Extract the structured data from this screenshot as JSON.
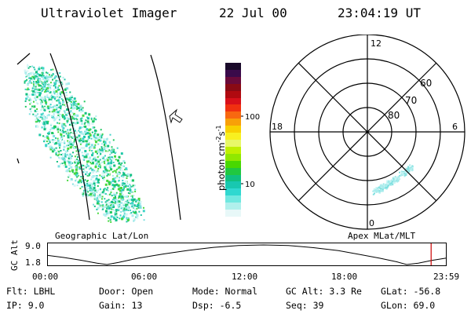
{
  "header": {
    "instrument": "Ultraviolet Imager",
    "date": "22 Jul 00",
    "time": "23:04:19 UT"
  },
  "geo_panel": {
    "label": "Geographic Lat/Lon"
  },
  "colorbar": {
    "unit": "photon cm-2s-1",
    "ticks": [
      "100",
      "10"
    ],
    "colors": [
      "#1a0a2a",
      "#3a0a4a",
      "#6a0a3a",
      "#8a0a14",
      "#b00a10",
      "#d8101a",
      "#f03010",
      "#f86810",
      "#f8a008",
      "#f8d000",
      "#f8f020",
      "#e8f868",
      "#c0f000",
      "#90e800",
      "#48d800",
      "#20c840",
      "#10c080",
      "#18c8b0",
      "#30d8d0",
      "#70e8e0",
      "#b0f0ec",
      "#e8f8f8"
    ],
    "scale": "log"
  },
  "polar": {
    "label": "Apex MLat/MLT",
    "mlt_labels": {
      "top": "12",
      "left": "18",
      "right": "6",
      "bottom": "0"
    },
    "lat_labels": [
      "60",
      "70",
      "80"
    ]
  },
  "timeline": {
    "ylabel": "GC Alt",
    "y_ticks": [
      "9.0",
      "1.8"
    ],
    "x_ticks": [
      "00:00",
      "06:00",
      "12:00",
      "18:00",
      "23:59"
    ],
    "marker_time": "23:04",
    "marker_color": "#cc0000",
    "altitude_series_re": [
      {
        "t": 0.0,
        "alt": 5.2
      },
      {
        "t": 1.0,
        "alt": 4.4
      },
      {
        "t": 2.0,
        "alt": 3.4
      },
      {
        "t": 3.0,
        "alt": 2.3
      },
      {
        "t": 3.6,
        "alt": 1.8
      },
      {
        "t": 4.3,
        "alt": 2.6
      },
      {
        "t": 5.5,
        "alt": 4.2
      },
      {
        "t": 7.0,
        "alt": 5.7
      },
      {
        "t": 8.5,
        "alt": 7.0
      },
      {
        "t": 10.0,
        "alt": 8.1
      },
      {
        "t": 11.5,
        "alt": 8.8
      },
      {
        "t": 13.0,
        "alt": 9.0
      },
      {
        "t": 14.5,
        "alt": 8.8
      },
      {
        "t": 16.0,
        "alt": 8.0
      },
      {
        "t": 17.5,
        "alt": 6.9
      },
      {
        "t": 18.8,
        "alt": 5.5
      },
      {
        "t": 20.0,
        "alt": 4.1
      },
      {
        "t": 21.0,
        "alt": 2.8
      },
      {
        "t": 21.6,
        "alt": 1.8
      },
      {
        "t": 22.3,
        "alt": 2.3
      },
      {
        "t": 23.1,
        "alt": 3.3
      },
      {
        "t": 23.98,
        "alt": 4.2
      }
    ]
  },
  "info": {
    "flt": "Flt: LBHL",
    "ip": "IP:  9.0",
    "door": "Door: Open",
    "gain": "Gain: 13",
    "mode": "Mode: Normal",
    "dsp": "Dsp:    -6.5",
    "gc_alt": "GC Alt: 3.3 Re",
    "seq": "Seq: 39",
    "glat": "GLat: -56.8",
    "glon": "GLon:  69.0"
  }
}
